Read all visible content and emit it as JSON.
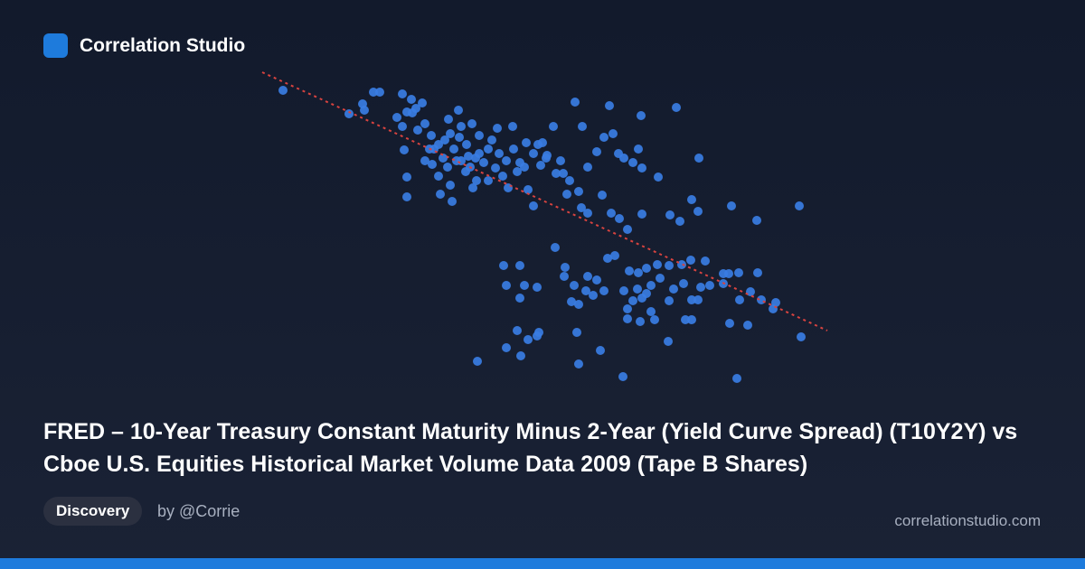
{
  "brand": "Correlation Studio",
  "title": "FRED – 10-Year Treasury Constant Maturity Minus 2-Year (Yield Curve Spread) (T10Y2Y) vs Cboe U.S. Equities Historical Market Volume Data 2009 (Tape B Shares)",
  "tag": "Discovery",
  "author": "by @Corrie",
  "site": "correlationstudio.com",
  "chart_data": {
    "type": "scatter",
    "color": "#3a7de3",
    "xlim": [
      0,
      640
    ],
    "ylim": [
      0,
      360
    ],
    "trendline": {
      "x": [
        10,
        635
      ],
      "y": [
        350,
        64
      ],
      "color": "#d8433f"
    },
    "x": [
      33,
      106,
      121,
      123,
      133,
      140,
      165,
      187,
      159,
      170,
      176,
      190,
      165,
      182,
      167,
      197,
      205,
      216,
      227,
      218,
      230,
      242,
      250,
      236,
      222,
      210,
      198,
      205,
      218,
      220,
      207,
      170,
      170,
      230,
      240,
      247,
      243,
      260,
      268,
      272,
      280,
      288,
      295,
      302,
      310,
      318,
      325,
      332,
      320,
      340,
      343,
      350,
      356,
      364,
      370,
      380,
      388,
      394,
      398,
      404,
      410,
      420,
      426,
      430,
      448,
      429,
      468,
      493,
      287,
      270,
      260,
      255,
      235,
      225,
      190,
      195,
      212,
      228,
      250,
      264,
      276,
      282,
      292,
      304,
      310,
      335,
      360,
      347,
      363,
      370,
      386,
      396,
      405,
      414,
      430,
      461,
      472,
      485,
      492,
      529,
      557,
      604,
      180,
      175,
      200,
      215,
      238,
      246,
      300,
      315,
      324,
      334,
      277,
      295,
      345,
      344,
      370,
      380,
      392,
      400,
      416,
      426,
      435,
      447,
      460,
      474,
      484,
      500,
      520,
      526,
      537,
      558,
      280,
      300,
      314,
      295,
      355,
      368,
      376,
      388,
      410,
      420,
      435,
      440,
      450,
      460,
      476,
      485,
      492,
      495,
      505,
      520,
      550,
      562,
      578,
      575,
      538,
      414,
      440,
      414,
      428,
      444,
      478,
      485,
      527,
      547,
      606,
      352,
      360,
      292,
      304,
      314,
      358,
      316,
      280,
      296,
      384,
      459,
      248,
      360,
      409,
      535,
      430,
      465,
      425
    ],
    "y": [
      330,
      304,
      315,
      308,
      328,
      328,
      326,
      316,
      300,
      306,
      305,
      293,
      290,
      286,
      264,
      280,
      270,
      298,
      308,
      282,
      290,
      293,
      280,
      270,
      265,
      255,
      248,
      235,
      225,
      207,
      215,
      234,
      212,
      252,
      245,
      230,
      222,
      230,
      244,
      260,
      252,
      265,
      250,
      272,
      260,
      247,
      258,
      290,
      272,
      252,
      238,
      230,
      317,
      290,
      245,
      262,
      278,
      313,
      282,
      260,
      255,
      250,
      265,
      244,
      234,
      302,
      311,
      255,
      290,
      288,
      265,
      250,
      240,
      252,
      252,
      265,
      275,
      278,
      260,
      275,
      235,
      222,
      240,
      220,
      202,
      238,
      218,
      215,
      200,
      194,
      214,
      194,
      188,
      176,
      193,
      192,
      185,
      209,
      196,
      202,
      186,
      202,
      310,
      320,
      265,
      245,
      257,
      255,
      245,
      270,
      255,
      156,
      136,
      136,
      134,
      124,
      124,
      120,
      144,
      147,
      130,
      128,
      133,
      137,
      136,
      137,
      142,
      141,
      127,
      127,
      128,
      128,
      114,
      114,
      112,
      100,
      114,
      108,
      103,
      108,
      108,
      97,
      105,
      114,
      122,
      97,
      116,
      98,
      98,
      112,
      114,
      116,
      107,
      98,
      95,
      88,
      98,
      88,
      85,
      77,
      74,
      76,
      76,
      76,
      72,
      70,
      57,
      96,
      93,
      64,
      54,
      58,
      62,
      62,
      45,
      36,
      42,
      52,
      30,
      27,
      13,
      11,
      100,
      110,
      110
    ]
  }
}
